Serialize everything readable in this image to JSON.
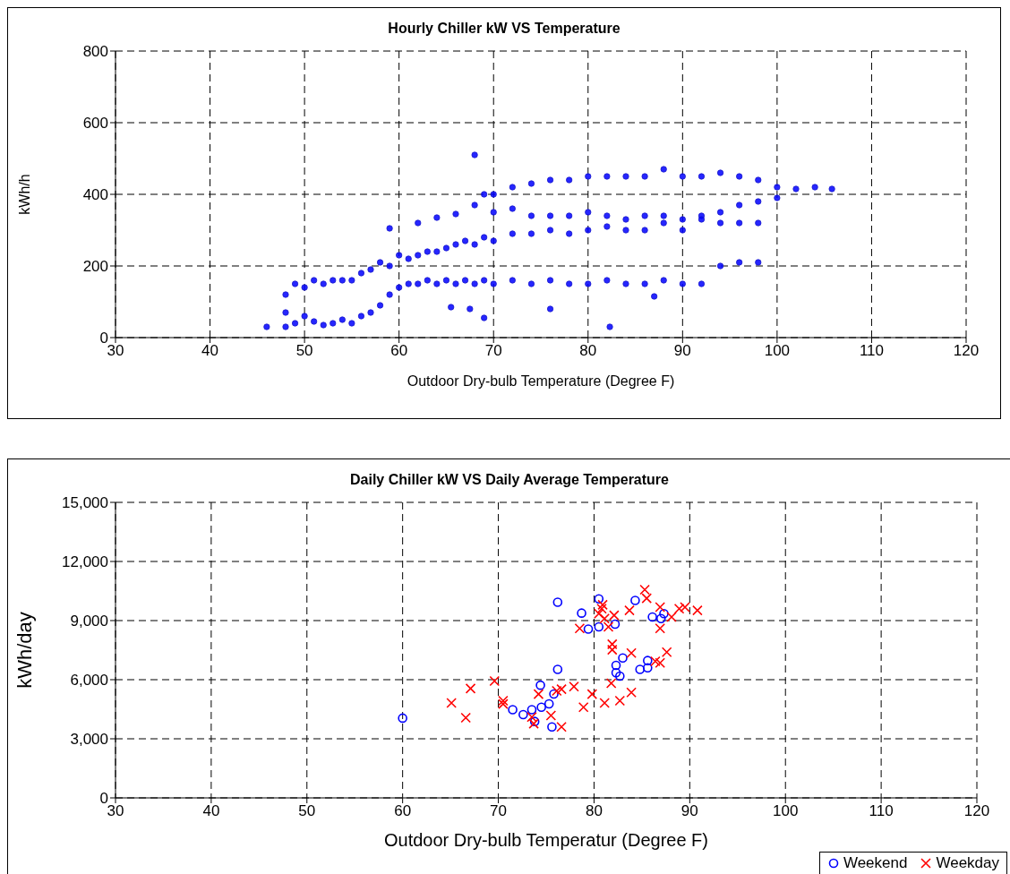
{
  "chart_data": [
    {
      "type": "scatter",
      "title": "Hourly Chiller kW VS Temperature",
      "xlabel": "Outdoor Dry-bulb Temperature (Degree F)",
      "ylabel": "kWh/h",
      "xlim": [
        30,
        120
      ],
      "xticks": [
        30,
        40,
        50,
        60,
        70,
        80,
        90,
        100,
        110,
        120
      ],
      "ylim": [
        0,
        800
      ],
      "yticks": [
        0,
        200,
        400,
        600,
        800
      ],
      "grid": true,
      "marker": "circle",
      "series": [
        {
          "color": "#0000ff",
          "x": [
            48,
            48,
            48,
            49,
            49,
            50,
            50,
            51,
            51,
            52,
            52,
            53,
            53,
            54,
            54,
            55,
            55,
            56,
            56,
            57,
            57,
            58,
            58,
            59,
            59,
            60,
            60,
            61,
            61,
            62,
            62,
            63,
            63,
            64,
            64,
            65,
            65,
            66,
            66,
            67,
            67,
            68,
            68,
            69,
            69,
            70,
            70,
            72,
            72,
            74,
            74,
            76,
            76,
            78,
            78,
            80,
            80,
            82,
            82,
            84,
            84,
            86,
            86,
            88,
            88,
            90,
            90,
            92,
            92,
            94,
            94,
            96,
            96,
            98,
            98,
            68,
            69,
            70,
            70,
            72,
            72,
            74,
            74,
            76,
            76,
            78,
            78,
            80,
            80,
            82,
            82,
            84,
            84,
            86,
            86,
            88,
            88,
            90,
            90,
            92,
            92,
            94,
            94,
            96,
            96,
            98,
            98,
            100,
            100,
            46,
            59,
            62,
            64,
            66,
            68,
            65.5,
            67.5,
            69,
            76,
            82.3,
            87,
            102,
            104,
            105.8
          ],
          "values": [
            30,
            70,
            120,
            40,
            150,
            60,
            140,
            45,
            160,
            35,
            150,
            40,
            160,
            50,
            160,
            40,
            160,
            60,
            180,
            70,
            190,
            90,
            210,
            120,
            200,
            140,
            230,
            150,
            220,
            150,
            230,
            160,
            240,
            150,
            240,
            160,
            250,
            150,
            260,
            160,
            270,
            150,
            260,
            160,
            280,
            150,
            270,
            160,
            290,
            150,
            290,
            160,
            300,
            150,
            290,
            150,
            300,
            160,
            310,
            150,
            300,
            150,
            300,
            160,
            320,
            150,
            300,
            150,
            340,
            200,
            320,
            210,
            320,
            210,
            320,
            370,
            400,
            350,
            400,
            360,
            420,
            340,
            430,
            340,
            440,
            340,
            440,
            350,
            450,
            340,
            450,
            330,
            450,
            340,
            450,
            340,
            470,
            330,
            450,
            330,
            450,
            350,
            460,
            370,
            450,
            380,
            440,
            390,
            420,
            30,
            305,
            320,
            335,
            345,
            510,
            85,
            80,
            55,
            80,
            30,
            115,
            415,
            420,
            415
          ]
        }
      ]
    },
    {
      "type": "scatter",
      "title": "Daily Chiller kW VS Daily Average Temperature",
      "xlabel": "Outdoor Dry-bulb Temperatur (Degree F)",
      "ylabel": "kWh/day",
      "xlim": [
        30,
        120
      ],
      "xticks": [
        30,
        40,
        50,
        60,
        70,
        80,
        90,
        100,
        110,
        120
      ],
      "ylim": [
        0,
        15000
      ],
      "yticks": [
        0,
        {
          "value": 3000,
          "label": "3,000"
        },
        {
          "value": 6000,
          "label": "6,000"
        },
        {
          "value": 9000,
          "label": "9,000"
        },
        {
          "value": 12000,
          "label": "12,000"
        },
        {
          "value": 15000,
          "label": "15,000"
        }
      ],
      "grid": true,
      "legend": "bottom right",
      "series": [
        {
          "name": "Weekend",
          "color": "#0000ff",
          "marker": "circle",
          "x": [
            76.2,
            80.5,
            78.7,
            79.4,
            80.5,
            82.2,
            84.3,
            86.1,
            87.3,
            87.0,
            76.2,
            83.0,
            82.3,
            82.3,
            82.7,
            84.8,
            85.6,
            85.6,
            74.4,
            75.8,
            75.3,
            74.5,
            73.5,
            71.5,
            72.6,
            73.8,
            75.6,
            60.0
          ],
          "values": [
            9930,
            10100,
            9380,
            8570,
            8680,
            8820,
            10020,
            9180,
            9350,
            9100,
            6520,
            7100,
            6730,
            6350,
            6180,
            6520,
            6970,
            6600,
            5720,
            5270,
            4770,
            4600,
            4480,
            4480,
            4230,
            3880,
            3600,
            4050
          ]
        },
        {
          "name": "Weekday",
          "color": "#ff0000",
          "marker": "cross",
          "x": [
            85.3,
            85.5,
            83.7,
            80.8,
            81.1,
            81.5,
            78.5,
            82.1,
            86.9,
            86.9,
            88.9,
            89.5,
            90.8,
            88.1,
            81.9,
            81.9,
            83.9,
            87.6,
            86.4,
            86.9,
            69.6,
            81.8,
            70.5,
            70.5,
            78.9,
            79.8,
            81.1,
            82.7,
            83.9,
            77.9,
            76.6,
            76.1,
            74.2,
            73.5,
            73.7,
            75.5,
            76.6,
            67.1,
            65.1,
            66.6,
            80.5,
            80.9
          ],
          "values": [
            10570,
            10130,
            9520,
            9600,
            9100,
            8680,
            8600,
            9270,
            9680,
            8600,
            9600,
            9680,
            9520,
            9180,
            7800,
            7520,
            7350,
            7400,
            6930,
            6850,
            5930,
            5820,
            4930,
            4770,
            4600,
            5270,
            4820,
            4930,
            5350,
            5650,
            5520,
            5430,
            5270,
            4100,
            3770,
            4180,
            3600,
            5550,
            4820,
            4070,
            9350,
            9800
          ]
        }
      ]
    }
  ]
}
